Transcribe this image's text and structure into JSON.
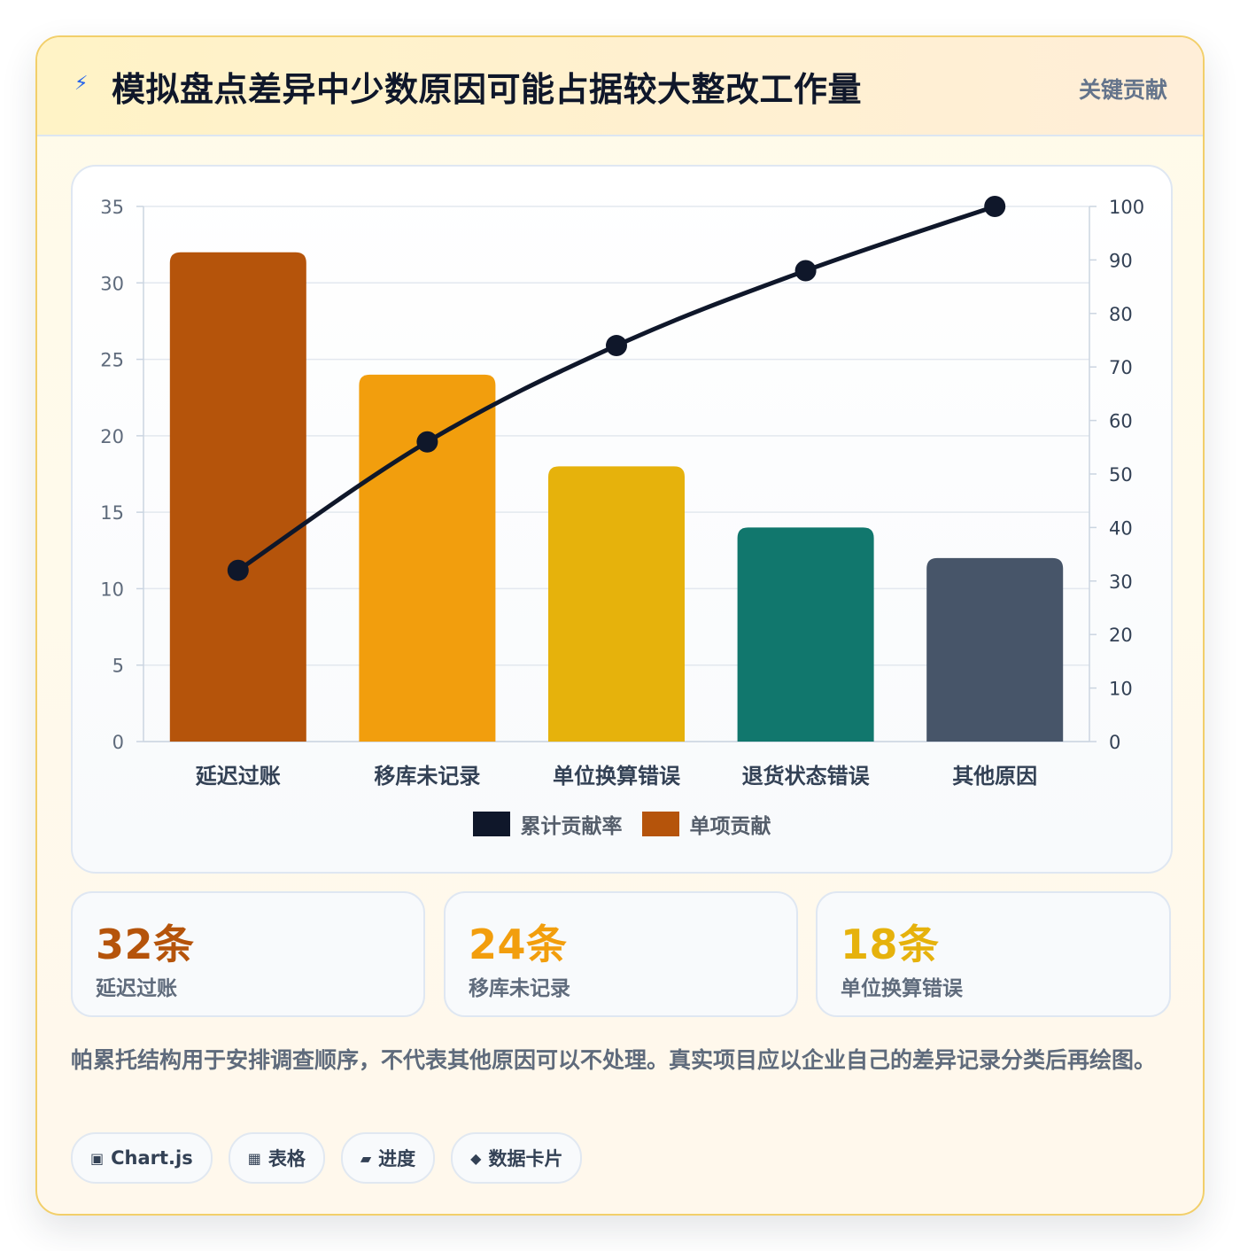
{
  "header": {
    "icon": "lightning-icon",
    "title": "模拟盘点差异中少数原因可能占据较大整改工作量",
    "badge": "关键贡献"
  },
  "chart_data": {
    "type": "bar",
    "categories": [
      "延迟过账",
      "移库未记录",
      "单位换算错误",
      "退货状态错误",
      "其他原因"
    ],
    "series": [
      {
        "name": "单项贡献",
        "type": "bar",
        "axis": "left",
        "values": [
          32,
          24,
          18,
          14,
          12
        ],
        "colors": [
          "#b5540b",
          "#f29e0d",
          "#e6b20c",
          "#11776d",
          "#475569"
        ]
      },
      {
        "name": "累计贡献率",
        "type": "line",
        "axis": "right",
        "values": [
          32,
          56,
          74,
          88,
          100
        ],
        "color": "#0f172a"
      }
    ],
    "ylim_left": [
      0,
      35
    ],
    "yticks_left": [
      0,
      5,
      10,
      15,
      20,
      25,
      30,
      35
    ],
    "ylim_right": [
      0,
      100
    ],
    "yticks_right": [
      0,
      10,
      20,
      30,
      40,
      50,
      60,
      70,
      80,
      90,
      100
    ],
    "grid": true,
    "legend_position": "bottom",
    "legend": [
      {
        "label": "累计贡献率",
        "color": "#0f172a"
      },
      {
        "label": "单项贡献",
        "color": "#b5540b"
      }
    ]
  },
  "stats": [
    {
      "value": "32条",
      "label": "延迟过账",
      "color": "#b5540b"
    },
    {
      "value": "24条",
      "label": "移库未记录",
      "color": "#f29e0d"
    },
    {
      "value": "18条",
      "label": "单位换算错误",
      "color": "#e6b20c"
    }
  ],
  "note": "帕累托结构用于安排调查顺序，不代表其他原因可以不处理。真实项目应以企业自己的差异记录分类后再绘图。",
  "tags": [
    {
      "icon": "▣",
      "label": "Chart.js"
    },
    {
      "icon": "▦",
      "label": "表格"
    },
    {
      "icon": "▰",
      "label": "进度"
    },
    {
      "icon": "◆",
      "label": "数据卡片"
    }
  ]
}
